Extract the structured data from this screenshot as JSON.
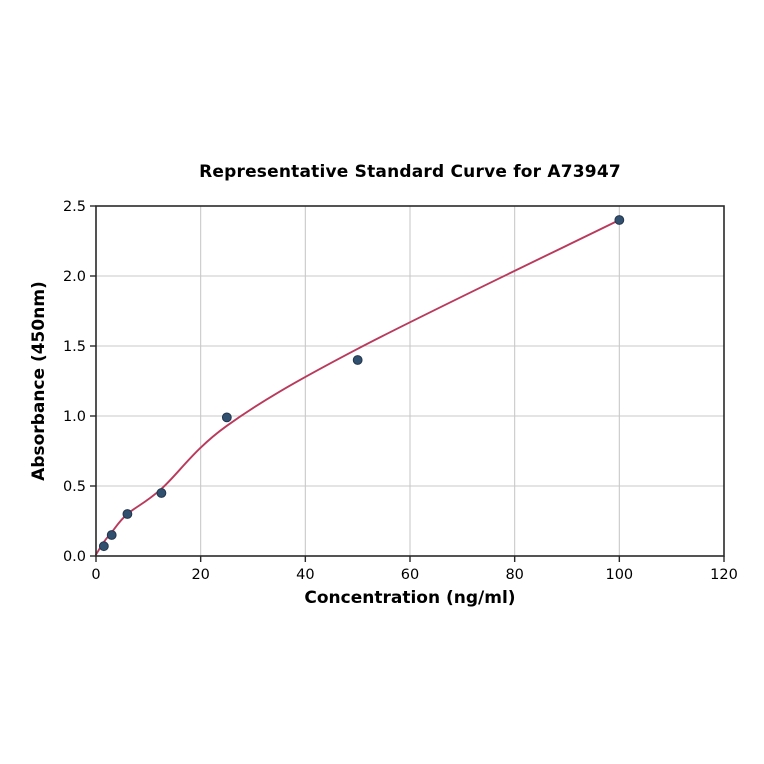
{
  "chart_data": {
    "type": "scatter",
    "title": "Representative Standard Curve for A73947",
    "xlabel": "Concentration (ng/ml)",
    "ylabel": "Absorbance (450nm)",
    "xlim": [
      0,
      120
    ],
    "ylim": [
      0,
      2.5
    ],
    "xtick_labels": [
      "0",
      "20",
      "40",
      "60",
      "80",
      "100",
      "120"
    ],
    "ytick_labels": [
      "0.0",
      "0.5",
      "1.0",
      "1.5",
      "2.0",
      "2.5"
    ],
    "grid": true,
    "legend": "none",
    "points": [
      [
        1.5,
        0.07
      ],
      [
        3,
        0.15
      ],
      [
        6,
        0.3
      ],
      [
        12.5,
        0.45
      ],
      [
        25,
        0.99
      ],
      [
        50,
        1.4
      ],
      [
        100,
        2.4
      ]
    ],
    "curve_points": [
      [
        0,
        0.01
      ],
      [
        1.5,
        0.1
      ],
      [
        3,
        0.17
      ],
      [
        6,
        0.3
      ],
      [
        12.5,
        0.48
      ],
      [
        25,
        0.93
      ],
      [
        50,
        1.48
      ],
      [
        100,
        2.4
      ]
    ],
    "colors": {
      "curve": "#b93a5c",
      "marker": "#31506f",
      "marker_edge": "#22354d",
      "grid": "#c9c9c9",
      "spine": "#2a2a2a",
      "text": "#000000",
      "background": "#ffffff"
    }
  }
}
